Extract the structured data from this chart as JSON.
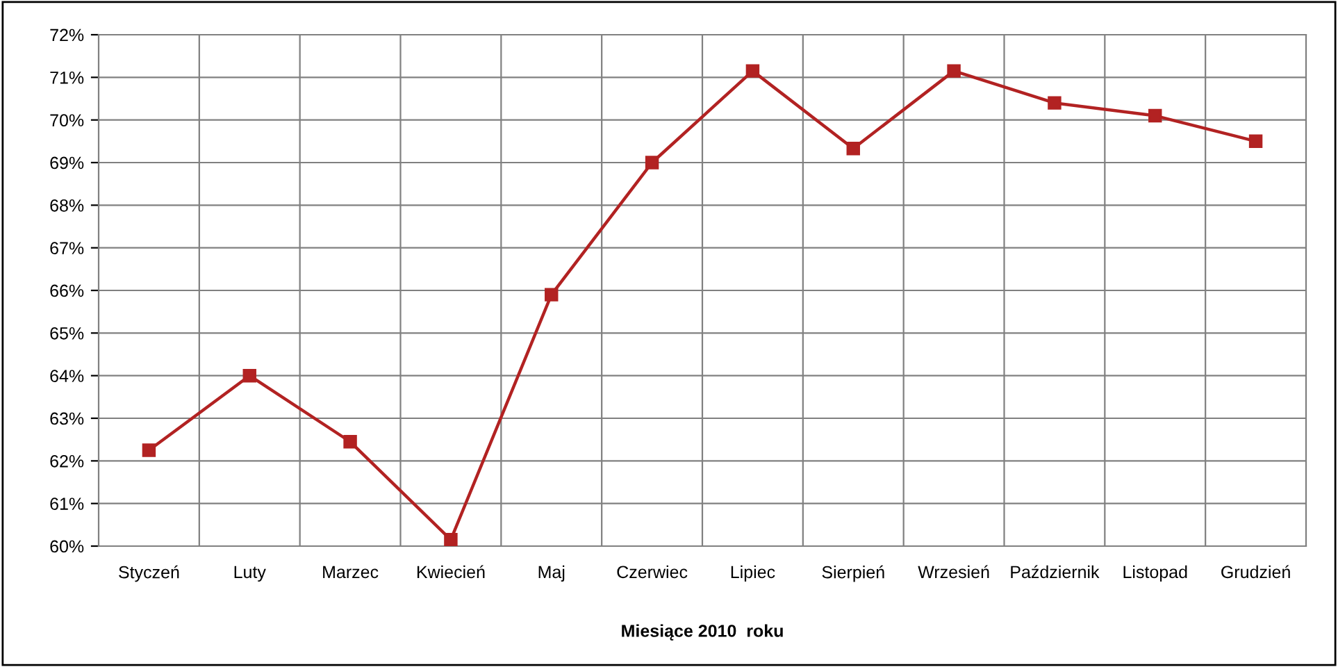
{
  "chart_data": {
    "type": "line",
    "xlabel": "Miesiące 2010  roku",
    "categories": [
      "Styczeń",
      "Luty",
      "Marzec",
      "Kwiecień",
      "Maj",
      "Czerwiec",
      "Lipiec",
      "Sierpień",
      "Wrzesień",
      "Październik",
      "Listopad",
      "Grudzień"
    ],
    "series": [
      {
        "color": "#b22222",
        "values": [
          62.25,
          64.0,
          62.45,
          60.15,
          65.9,
          69.0,
          71.15,
          69.33,
          71.15,
          70.4,
          70.1,
          69.5
        ]
      }
    ],
    "ylim": [
      60,
      72
    ],
    "yticks": [
      {
        "value": 60,
        "label": "60%"
      },
      {
        "value": 61,
        "label": "61%"
      },
      {
        "value": 62,
        "label": "62%"
      },
      {
        "value": 63,
        "label": "63%"
      },
      {
        "value": 64,
        "label": "64%"
      },
      {
        "value": 65,
        "label": "65%"
      },
      {
        "value": 66,
        "label": "66%"
      },
      {
        "value": 67,
        "label": "67%"
      },
      {
        "value": 68,
        "label": "68%"
      },
      {
        "value": 69,
        "label": "69%"
      },
      {
        "value": 70,
        "label": "70%"
      },
      {
        "value": 71,
        "label": "71%"
      },
      {
        "value": 72,
        "label": "72%"
      }
    ],
    "grid": true,
    "marker": "square",
    "line_style": "solid"
  }
}
